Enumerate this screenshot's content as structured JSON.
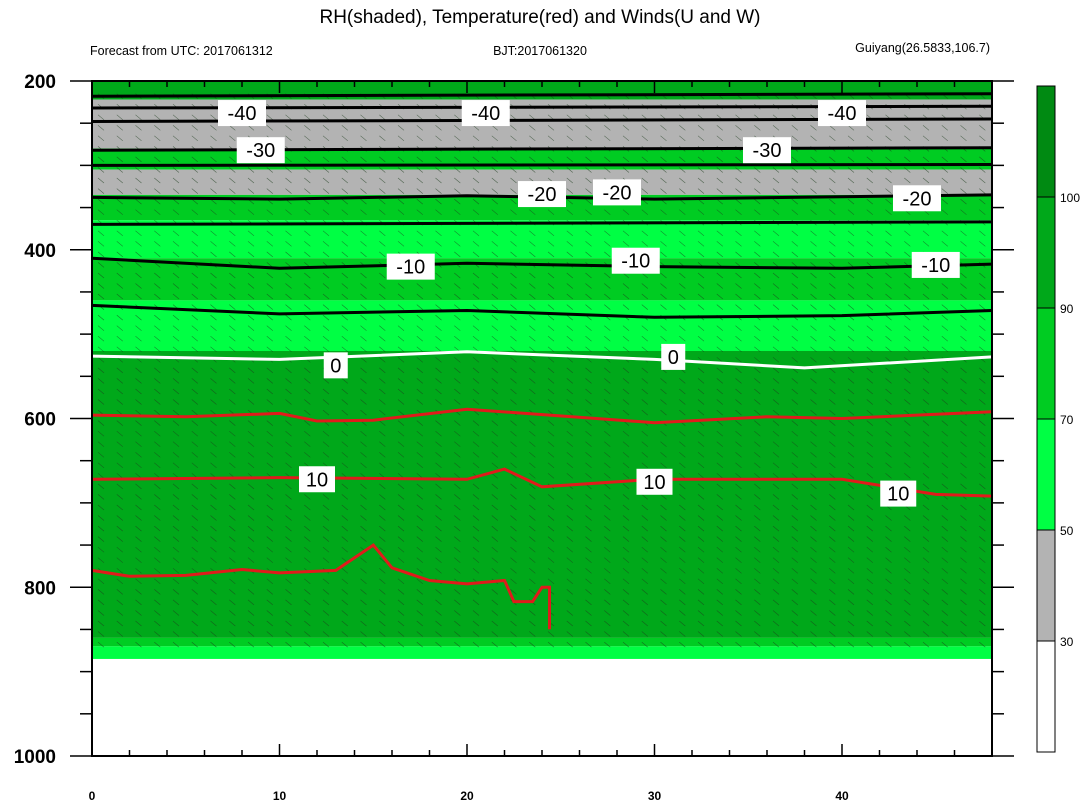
{
  "chart_data": {
    "type": "heatmap",
    "title": "RH(shaded), Temperature(red) and Winds(U and W)",
    "subtitle_left": "Forecast from UTC: 2017061312",
    "subtitle_center": "BJT:2017061320",
    "subtitle_right": "Guiyang(26.5833,106.7)",
    "x_ticks": [
      "0",
      "10",
      "20",
      "30",
      "40"
    ],
    "y_ticks": [
      "200",
      "400",
      "600",
      "800",
      "1000"
    ],
    "xlim": [
      0,
      48
    ],
    "ylim": [
      200,
      1000
    ],
    "y_axis_inverted": true,
    "colorbar": {
      "levels": [
        "30",
        "50",
        "70",
        "90",
        "100"
      ],
      "colors": [
        "#ffffff",
        "#b3b3b3",
        "#00ff44",
        "#00cc22",
        "#00a81a",
        "#008a12"
      ]
    },
    "rh_layers": [
      {
        "bottom": 200,
        "top": 200,
        "class": 3
      },
      {
        "bottom": 222,
        "top": 200,
        "class": 4
      },
      {
        "bottom": 280,
        "top": 222,
        "class": 1
      },
      {
        "bottom": 305,
        "top": 280,
        "class": 3
      },
      {
        "bottom": 335,
        "top": 305,
        "class": 1
      },
      {
        "bottom": 365,
        "top": 335,
        "class": 3
      },
      {
        "bottom": 410,
        "top": 365,
        "class": 2
      },
      {
        "bottom": 460,
        "top": 410,
        "class": 3
      },
      {
        "bottom": 520,
        "top": 460,
        "class": 2
      },
      {
        "bottom": 860,
        "top": 520,
        "class": 4
      },
      {
        "bottom": 870,
        "top": 860,
        "class": 3
      },
      {
        "bottom": 885,
        "top": 870,
        "class": 2
      }
    ],
    "rh_data_bottom": 885,
    "temperature_contours": [
      {
        "value": "-40",
        "color": "#000000",
        "points": [
          [
            0,
            218
          ],
          [
            48,
            215
          ]
        ],
        "labels": [
          [
            8,
            238
          ],
          [
            21,
            238
          ],
          [
            40,
            238
          ]
        ]
      },
      {
        "value": "-40",
        "color": "#000000",
        "points": [
          [
            0,
            232
          ],
          [
            48,
            230
          ]
        ],
        "labels": []
      },
      {
        "value": "-40",
        "color": "#000000",
        "points": [
          [
            0,
            248
          ],
          [
            48,
            245
          ]
        ],
        "labels": []
      },
      {
        "value": "-30",
        "color": "#000000",
        "points": [
          [
            0,
            282
          ],
          [
            48,
            279
          ]
        ],
        "labels": [
          [
            9,
            282
          ],
          [
            36,
            282
          ]
        ]
      },
      {
        "value": "-30",
        "color": "#000000",
        "points": [
          [
            0,
            300
          ],
          [
            48,
            299
          ]
        ],
        "labels": []
      },
      {
        "value": "-20",
        "color": "#000000",
        "points": [
          [
            0,
            338
          ],
          [
            10,
            340
          ],
          [
            20,
            336
          ],
          [
            30,
            340
          ],
          [
            48,
            335
          ]
        ],
        "labels": [
          [
            24,
            334
          ],
          [
            28,
            332
          ],
          [
            44,
            339
          ]
        ]
      },
      {
        "value": "-20",
        "color": "#000000",
        "points": [
          [
            0,
            370
          ],
          [
            48,
            367
          ]
        ],
        "labels": []
      },
      {
        "value": "-10",
        "color": "#000000",
        "points": [
          [
            0,
            410
          ],
          [
            10,
            422
          ],
          [
            20,
            416
          ],
          [
            30,
            420
          ],
          [
            40,
            422
          ],
          [
            48,
            417
          ]
        ],
        "labels": [
          [
            17,
            420
          ],
          [
            29,
            413
          ],
          [
            45,
            418
          ]
        ]
      },
      {
        "value": "-10",
        "color": "#000000",
        "points": [
          [
            0,
            466
          ],
          [
            10,
            476
          ],
          [
            20,
            472
          ],
          [
            30,
            480
          ],
          [
            40,
            478
          ],
          [
            48,
            472
          ]
        ],
        "labels": []
      },
      {
        "value": "0",
        "color": "#ffffff",
        "points": [
          [
            0,
            526
          ],
          [
            10,
            530
          ],
          [
            20,
            521
          ],
          [
            30,
            530
          ],
          [
            38,
            540
          ],
          [
            48,
            527
          ]
        ],
        "labels": [
          [
            13,
            537
          ],
          [
            31,
            527
          ]
        ]
      },
      {
        "value": "",
        "color": "#e01b1b",
        "points": [
          [
            0,
            596
          ],
          [
            5,
            598
          ],
          [
            10,
            594
          ],
          [
            12,
            603
          ],
          [
            15,
            602
          ],
          [
            20,
            589
          ],
          [
            30,
            605
          ],
          [
            36,
            598
          ],
          [
            40,
            600
          ],
          [
            48,
            592
          ]
        ],
        "labels": []
      },
      {
        "value": "10",
        "color": "#e01b1b",
        "points": [
          [
            0,
            672
          ],
          [
            10,
            670
          ],
          [
            20,
            672
          ],
          [
            22,
            660
          ],
          [
            24,
            681
          ],
          [
            30,
            672
          ],
          [
            40,
            672
          ],
          [
            45,
            690
          ],
          [
            48,
            692
          ]
        ],
        "labels": [
          [
            12,
            672
          ],
          [
            30,
            675
          ],
          [
            43,
            689
          ]
        ]
      },
      {
        "value": "",
        "color": "#e01b1b",
        "points": [
          [
            0,
            780
          ],
          [
            2,
            787
          ],
          [
            5,
            786
          ],
          [
            8,
            779
          ],
          [
            10,
            783
          ],
          [
            13,
            780
          ],
          [
            15,
            750
          ],
          [
            16,
            777
          ],
          [
            18,
            792
          ],
          [
            20,
            796
          ],
          [
            22,
            792
          ],
          [
            22.5,
            817
          ],
          [
            23.5,
            817
          ],
          [
            24,
            800
          ],
          [
            24.4,
            800
          ],
          [
            24.4,
            850
          ]
        ],
        "labels": []
      }
    ]
  }
}
